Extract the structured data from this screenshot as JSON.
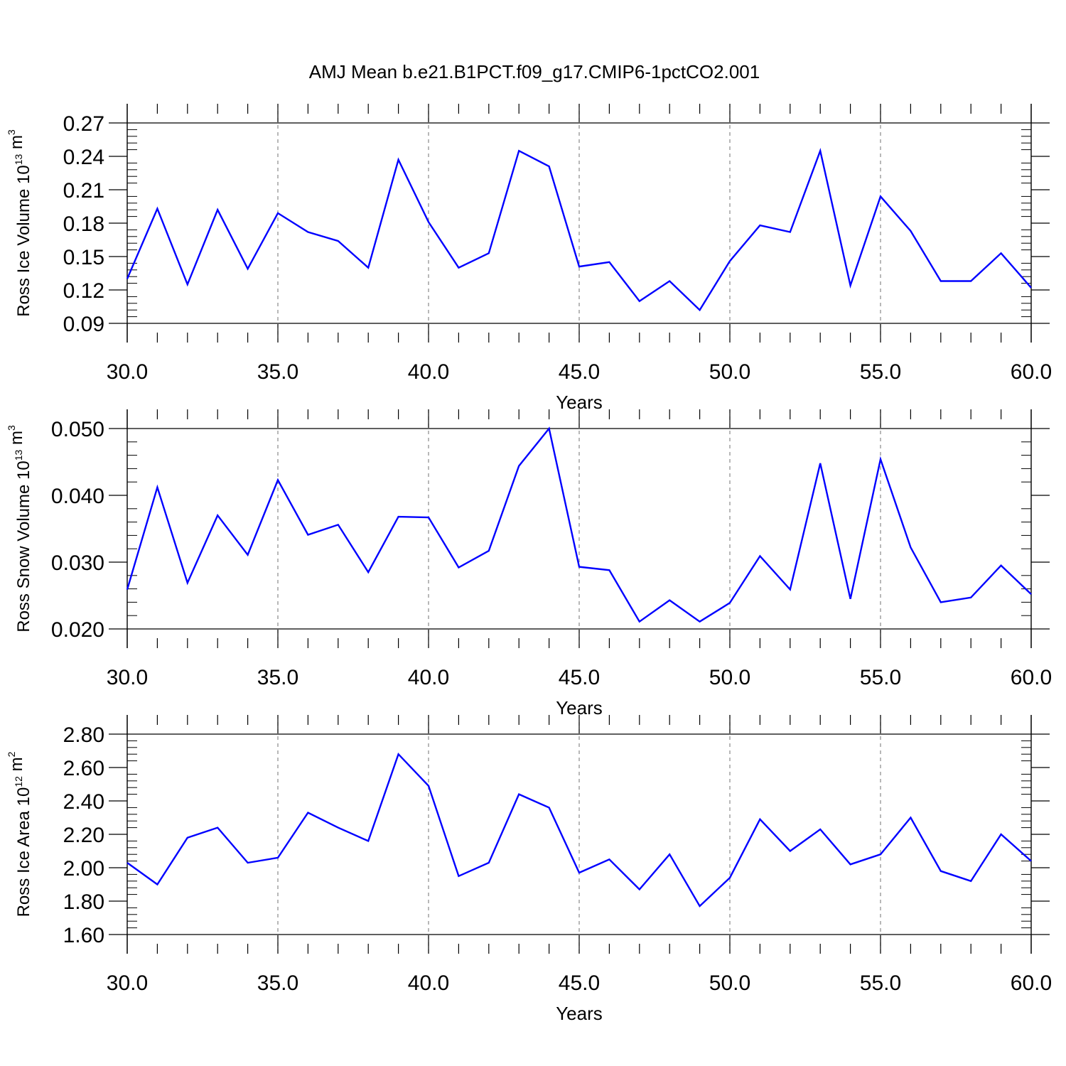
{
  "title": "AMJ Mean b.e21.B1PCT.f09_g17.CMIP6-1pctCO2.001",
  "line_color": "#0000ff",
  "chart_data": [
    {
      "type": "line",
      "ylabel": {
        "base": "Ross Ice Volume 10",
        "exp": "13",
        "unit": " m",
        "unit_exp": "3"
      },
      "xlabel": "Years",
      "xlim": [
        30,
        60
      ],
      "ylim": [
        0.09,
        0.27
      ],
      "xticks": [
        "30.0",
        "35.0",
        "40.0",
        "45.0",
        "50.0",
        "55.0",
        "60.0"
      ],
      "yticks": [
        "0.09",
        "0.12",
        "0.15",
        "0.18",
        "0.21",
        "0.24",
        "0.27"
      ],
      "grid": "x-dashed",
      "series": [
        {
          "x": [
            30,
            31,
            32,
            33,
            34,
            35,
            36,
            37,
            38,
            39,
            40,
            41,
            42,
            43,
            44,
            45,
            46,
            47,
            48,
            49,
            50,
            51,
            52,
            53,
            54,
            55,
            56,
            57,
            58,
            59,
            60
          ],
          "values": [
            0.13,
            0.193,
            0.125,
            0.192,
            0.139,
            0.189,
            0.172,
            0.164,
            0.14,
            0.237,
            0.181,
            0.14,
            0.153,
            0.245,
            0.231,
            0.141,
            0.145,
            0.11,
            0.128,
            0.102,
            0.146,
            0.178,
            0.172,
            0.245,
            0.124,
            0.204,
            0.173,
            0.128,
            0.128,
            0.153,
            0.122
          ]
        }
      ]
    },
    {
      "type": "line",
      "ylabel": {
        "base": "Ross Snow Volume 10",
        "exp": "13",
        "unit": " m",
        "unit_exp": "3"
      },
      "xlabel": "Years",
      "xlim": [
        30,
        60
      ],
      "ylim": [
        0.02,
        0.05
      ],
      "xticks": [
        "30.0",
        "35.0",
        "40.0",
        "45.0",
        "50.0",
        "55.0",
        "60.0"
      ],
      "yticks": [
        "0.020",
        "0.030",
        "0.040",
        "0.050"
      ],
      "grid": "x-dashed",
      "series": [
        {
          "x": [
            30,
            31,
            32,
            33,
            34,
            35,
            36,
            37,
            38,
            39,
            40,
            41,
            42,
            43,
            44,
            45,
            46,
            47,
            48,
            49,
            50,
            51,
            52,
            53,
            54,
            55,
            56,
            57,
            58,
            59,
            60
          ],
          "values": [
            0.0259,
            0.0412,
            0.0269,
            0.037,
            0.0311,
            0.0423,
            0.0341,
            0.0356,
            0.0285,
            0.0368,
            0.0367,
            0.0292,
            0.0317,
            0.0444,
            0.05,
            0.0293,
            0.0288,
            0.0211,
            0.0243,
            0.0211,
            0.0239,
            0.0309,
            0.0259,
            0.0448,
            0.0245,
            0.0454,
            0.0322,
            0.024,
            0.0247,
            0.0295,
            0.0252
          ]
        }
      ]
    },
    {
      "type": "line",
      "ylabel": {
        "base": "Ross Ice Area 10",
        "exp": "12",
        "unit": " m",
        "unit_exp": "2"
      },
      "xlabel": "Years",
      "xlim": [
        30,
        60
      ],
      "ylim": [
        1.6,
        2.8
      ],
      "xticks": [
        "30.0",
        "35.0",
        "40.0",
        "45.0",
        "50.0",
        "55.0",
        "60.0"
      ],
      "yticks": [
        "1.60",
        "1.80",
        "2.00",
        "2.20",
        "2.40",
        "2.60",
        "2.80"
      ],
      "grid": "x-dashed",
      "series": [
        {
          "x": [
            30,
            31,
            32,
            33,
            34,
            35,
            36,
            37,
            38,
            39,
            40,
            41,
            42,
            43,
            44,
            45,
            46,
            47,
            48,
            49,
            50,
            51,
            52,
            53,
            54,
            55,
            56,
            57,
            58,
            59,
            60
          ],
          "values": [
            2.03,
            1.9,
            2.18,
            2.24,
            2.03,
            2.06,
            2.33,
            2.24,
            2.16,
            2.68,
            2.49,
            1.95,
            2.03,
            2.44,
            2.36,
            1.97,
            2.05,
            1.87,
            2.08,
            1.77,
            1.94,
            2.29,
            2.1,
            2.23,
            2.02,
            2.08,
            2.3,
            1.98,
            1.92,
            2.2,
            2.04
          ]
        }
      ]
    }
  ]
}
